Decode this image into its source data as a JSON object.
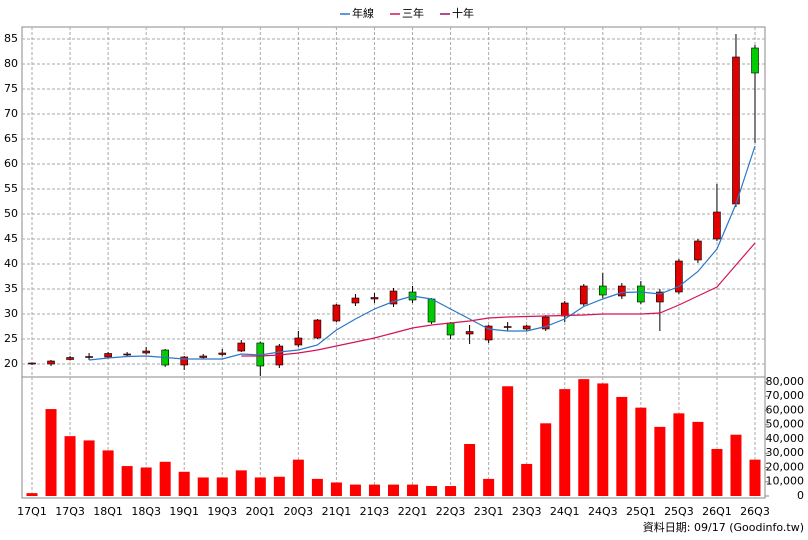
{
  "footer": "資料日期: 09/17  (Goodinfo.tw)",
  "chart_data": [
    {
      "type": "candlestick",
      "categories": [
        "17Q1",
        null,
        "17Q3",
        null,
        "18Q1",
        null,
        "18Q3",
        null,
        "19Q1",
        null,
        "19Q3",
        null,
        "20Q1",
        null,
        "20Q3",
        null,
        "21Q1",
        null,
        "21Q3",
        null,
        "22Q1",
        null,
        "22Q3",
        null,
        "23Q1",
        null,
        "23Q3",
        null,
        "24Q1",
        null,
        "24Q3",
        null,
        "25Q1",
        null,
        "25Q3",
        null,
        "26Q1",
        null,
        "26Q3"
      ],
      "open": [
        20,
        20,
        20.9,
        21.3,
        21.4,
        21.8,
        22.2,
        22.8,
        19.8,
        21.3,
        21.9,
        22.6,
        24.2,
        19.8,
        23.8,
        25.2,
        28.6,
        32.2,
        33,
        32,
        34.4,
        33,
        28.2,
        26,
        24.8,
        27.3,
        27,
        27,
        29.6,
        32,
        35.6,
        33.6,
        35.6,
        32.4,
        34.4,
        40.8,
        45,
        52,
        83.2
      ],
      "high": [
        20.3,
        20.8,
        21.6,
        22.2,
        22.4,
        22.4,
        23.4,
        23,
        21.6,
        22,
        23,
        24.8,
        24.5,
        24,
        26.6,
        29,
        32,
        34,
        34.2,
        35.2,
        35.6,
        33.2,
        28.4,
        27.8,
        27.8,
        28.4,
        27.8,
        29.8,
        32.6,
        36,
        38.2,
        36.2,
        36.6,
        35,
        41,
        45,
        56,
        86,
        83.8
      ],
      "low": [
        19.8,
        19.6,
        20.7,
        20.8,
        21.2,
        21.5,
        21.9,
        19.4,
        18.8,
        20.9,
        21.5,
        22.4,
        17.6,
        19.2,
        23.4,
        25,
        28.4,
        31.6,
        32.2,
        31.4,
        32.2,
        28,
        25,
        24,
        24.2,
        26.6,
        26.6,
        26.6,
        28.4,
        31.6,
        33.2,
        33,
        32,
        26.6,
        34,
        40.2,
        44.6,
        51.4,
        64.2
      ],
      "close": [
        20.2,
        20.6,
        21.3,
        21.5,
        22.1,
        22,
        22.6,
        19.8,
        21.4,
        21.6,
        22.2,
        24.2,
        19.6,
        23.6,
        25.2,
        28.8,
        31.8,
        33.2,
        33.3,
        34.6,
        32.8,
        28.4,
        25.8,
        26.5,
        27.6,
        27.5,
        27.6,
        29.4,
        32.2,
        35.6,
        33.8,
        35.6,
        32.4,
        34.4,
        40.6,
        44.6,
        50.4,
        81.4,
        78.2
      ],
      "up_color": "#e00000",
      "down_color": "#00cc00",
      "series": [
        {
          "name": "年線",
          "color": "#2a78c8",
          "values": [
            null,
            null,
            null,
            20.8,
            21.2,
            21.5,
            21.6,
            21.3,
            21,
            21,
            21,
            22,
            21.8,
            22.4,
            22.8,
            23.8,
            26.8,
            29,
            31,
            32.5,
            33.6,
            33,
            31,
            29,
            27,
            26.6,
            26.6,
            27.5,
            29,
            31.5,
            33,
            34.3,
            34.4,
            34,
            35.5,
            38.5,
            43,
            52,
            63.6
          ]
        },
        {
          "name": "三年",
          "color": "#d4145a",
          "values": [
            null,
            null,
            null,
            null,
            null,
            null,
            null,
            null,
            null,
            null,
            null,
            21.6,
            21.6,
            21.8,
            22.2,
            22.8,
            23.6,
            24.4,
            25.2,
            26.2,
            27.2,
            27.8,
            28.2,
            28.6,
            29.2,
            29.4,
            29.5,
            29.6,
            29.7,
            29.8,
            30,
            30,
            30,
            30.2,
            31.8,
            33.6,
            35.4,
            39.8,
            44.2
          ]
        },
        {
          "name": "十年",
          "color": "#9b0d6e",
          "values": [
            null,
            null,
            null,
            null,
            null,
            null,
            null,
            null,
            null,
            null,
            null,
            null,
            null,
            null,
            null,
            null,
            null,
            null,
            null,
            null,
            null,
            null,
            null,
            null,
            null,
            null,
            null,
            null,
            null,
            null,
            null,
            null,
            null,
            null,
            null,
            null,
            null,
            null,
            null
          ]
        }
      ],
      "ylim": [
        17.6,
        87.4
      ],
      "yticks": [
        20,
        25,
        30,
        35,
        40,
        45,
        50,
        55,
        60,
        65,
        70,
        75,
        80,
        85
      ],
      "grid": true
    },
    {
      "type": "bar",
      "color": "#ff0000",
      "values": [
        2000,
        61000,
        42000,
        39000,
        32000,
        21000,
        20000,
        24000,
        17000,
        13000,
        13000,
        18000,
        13000,
        13500,
        25500,
        12000,
        9500,
        8000,
        8000,
        8000,
        8000,
        7000,
        7000,
        36500,
        12000,
        77000,
        22500,
        51000,
        75000,
        82000,
        79000,
        69500,
        62000,
        48500,
        58000,
        52000,
        33000,
        43000,
        25500
      ],
      "ylim": [
        0,
        82800
      ],
      "yticks": [
        0,
        {
          "value": 10000,
          "label": "10,000"
        },
        {
          "value": 20000,
          "label": "20,000"
        },
        {
          "value": 30000,
          "label": "30,000"
        },
        {
          "value": 40000,
          "label": "40,000"
        },
        {
          "value": 50000,
          "label": "50,000"
        },
        {
          "value": 60000,
          "label": "60,000"
        },
        {
          "value": 70000,
          "label": "70,000"
        },
        {
          "value": 80000,
          "label": "80,000"
        }
      ]
    }
  ]
}
